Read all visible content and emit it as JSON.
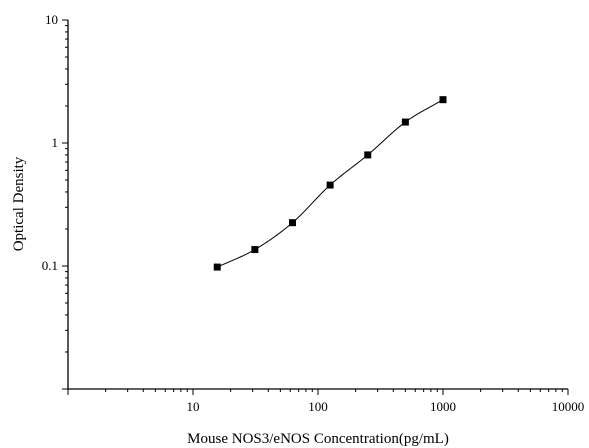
{
  "chart_data": {
    "type": "scatter",
    "title": "",
    "xlabel": "Mouse NOS3/eNOS Concentration(pg/mL)",
    "ylabel": "Optical Density",
    "x_scale": "log",
    "y_scale": "log",
    "xlim": [
      1,
      10000
    ],
    "ylim": [
      0.01,
      10
    ],
    "x_ticks": [
      10,
      100,
      1000,
      10000
    ],
    "x_tick_labels": [
      "10",
      "100",
      "1000",
      "10000"
    ],
    "y_ticks": [
      0.1,
      1,
      10
    ],
    "y_tick_labels": [
      "0.1",
      "1",
      "10"
    ],
    "grid": false,
    "legend": "none",
    "series": [
      {
        "x": [
          15.63,
          31.25,
          62.5,
          125,
          250,
          500,
          1000
        ],
        "y": [
          0.098,
          0.136,
          0.225,
          0.455,
          0.8,
          1.48,
          2.25
        ],
        "marker": "square",
        "fitted_curve": true
      }
    ],
    "colors": {
      "axis": "#000000",
      "marker": "#000000",
      "curve": "#000000"
    }
  }
}
